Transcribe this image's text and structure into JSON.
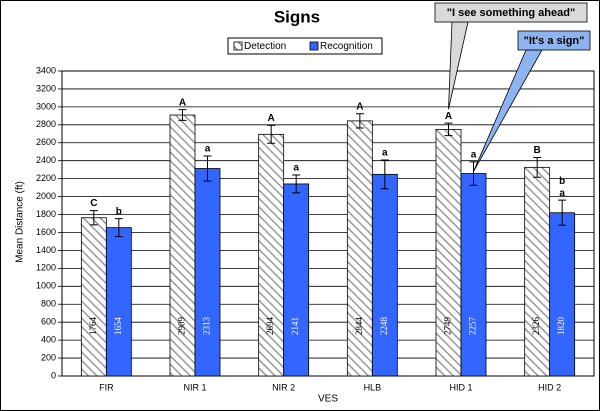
{
  "chart_data": {
    "type": "bar",
    "title": "Signs",
    "xlabel": "VES",
    "ylabel": "Mean Distance (ft)",
    "categories": [
      "FIR",
      "NIR 1",
      "NIR 2",
      "HLB",
      "HID 1",
      "HID 2"
    ],
    "series": [
      {
        "name": "Detection",
        "color": "#ffffff",
        "hatch": true,
        "values": [
          1764,
          2909,
          2694,
          2844,
          2749,
          2326
        ],
        "errors": [
          80,
          60,
          100,
          80,
          70,
          110
        ],
        "letters": [
          [
            "C"
          ],
          [
            "A"
          ],
          [
            "A"
          ],
          [
            "A"
          ],
          [
            "A"
          ],
          [
            "B"
          ]
        ]
      },
      {
        "name": "Recognition",
        "color": "#3366ff",
        "hatch": false,
        "values": [
          1654,
          2313,
          2141,
          2248,
          2257,
          1820
        ],
        "errors": [
          100,
          140,
          100,
          160,
          130,
          140
        ],
        "letters": [
          [
            "b"
          ],
          [
            "a"
          ],
          [
            "a"
          ],
          [
            "a"
          ],
          [
            "a"
          ],
          [
            "b",
            "a"
          ]
        ]
      }
    ],
    "ylim": [
      0,
      3400
    ],
    "yticks": [
      0,
      200,
      400,
      600,
      800,
      1000,
      1200,
      1400,
      1600,
      1800,
      2000,
      2200,
      2400,
      2600,
      2800,
      3000,
      3200,
      3400
    ],
    "grid": true,
    "legend": "top",
    "annotations": [
      "\"I see something ahead\"",
      "\"It's a sign\""
    ]
  }
}
